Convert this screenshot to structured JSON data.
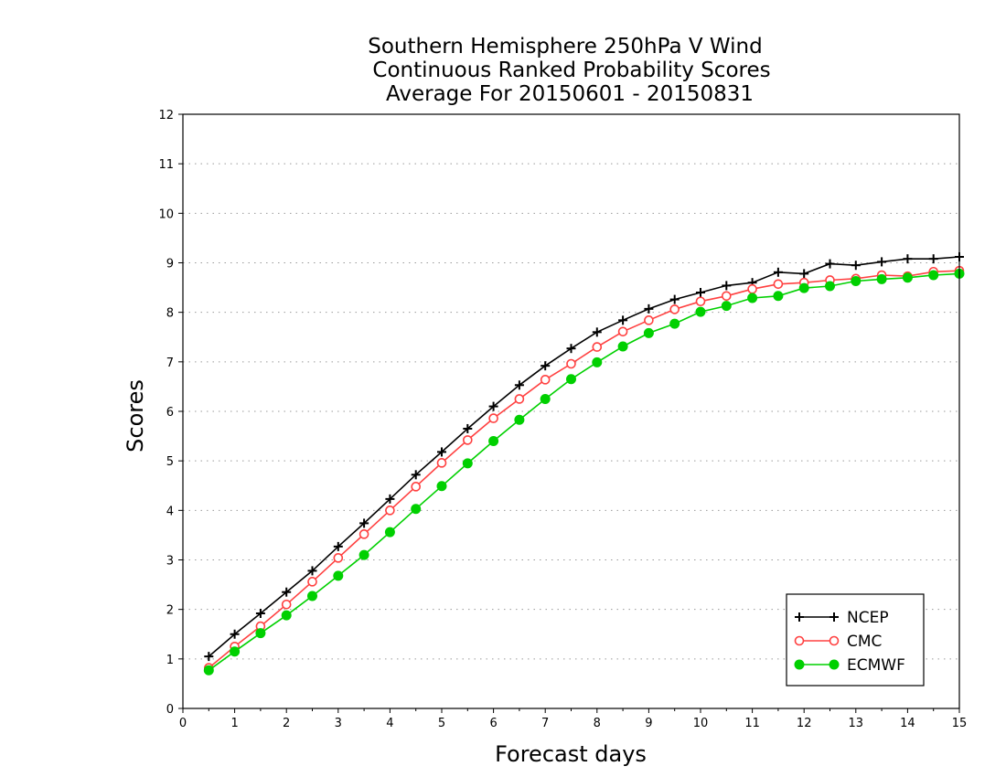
{
  "chart_data": {
    "type": "line",
    "title_lines": [
      "Southern Hemisphere 250hPa V Wind",
      "Continuous Ranked Probability Scores",
      "Average For 20150601 - 20150831"
    ],
    "xlabel": "Forecast days",
    "ylabel": "Scores",
    "xlim": [
      0,
      15
    ],
    "ylim": [
      0,
      12
    ],
    "x_ticks": [
      0,
      1,
      2,
      3,
      4,
      5,
      6,
      7,
      8,
      9,
      10,
      11,
      12,
      13,
      14,
      15
    ],
    "y_ticks": [
      0,
      1,
      2,
      3,
      4,
      5,
      6,
      7,
      8,
      9,
      10,
      11,
      12
    ],
    "grid": "horizontal dotted",
    "legend_position": "bottom-right",
    "x": [
      0.5,
      1.0,
      1.5,
      2.0,
      2.5,
      3.0,
      3.5,
      4.0,
      4.5,
      5.0,
      5.5,
      6.0,
      6.5,
      7.0,
      7.5,
      8.0,
      8.5,
      9.0,
      9.5,
      10.0,
      10.5,
      11.0,
      11.5,
      12.0,
      12.5,
      13.0,
      13.5,
      14.0,
      14.5,
      15.0
    ],
    "series": [
      {
        "name": "NCEP",
        "color": "#000000",
        "marker": "plus",
        "values": [
          1.05,
          1.5,
          1.92,
          2.35,
          2.78,
          3.27,
          3.74,
          4.23,
          4.72,
          5.18,
          5.65,
          6.1,
          6.53,
          6.92,
          7.27,
          7.6,
          7.84,
          8.07,
          8.26,
          8.4,
          8.54,
          8.6,
          8.81,
          8.78,
          8.98,
          8.95,
          9.02,
          9.08,
          9.08,
          9.12
        ]
      },
      {
        "name": "CMC",
        "color": "#ff4040",
        "marker": "open-circle",
        "values": [
          0.82,
          1.25,
          1.66,
          2.1,
          2.56,
          3.04,
          3.52,
          4.0,
          4.48,
          4.96,
          5.42,
          5.86,
          6.25,
          6.64,
          6.96,
          7.3,
          7.61,
          7.84,
          8.06,
          8.22,
          8.33,
          8.47,
          8.57,
          8.6,
          8.65,
          8.68,
          8.75,
          8.73,
          8.82,
          8.84
        ]
      },
      {
        "name": "ECMWF",
        "color": "#00d000",
        "marker": "filled-circle",
        "values": [
          0.77,
          1.15,
          1.52,
          1.88,
          2.27,
          2.68,
          3.1,
          3.56,
          4.03,
          4.49,
          4.95,
          5.4,
          5.83,
          6.25,
          6.65,
          6.99,
          7.31,
          7.58,
          7.77,
          8.01,
          8.13,
          8.29,
          8.33,
          8.49,
          8.53,
          8.63,
          8.67,
          8.7,
          8.75,
          8.78
        ]
      }
    ]
  }
}
